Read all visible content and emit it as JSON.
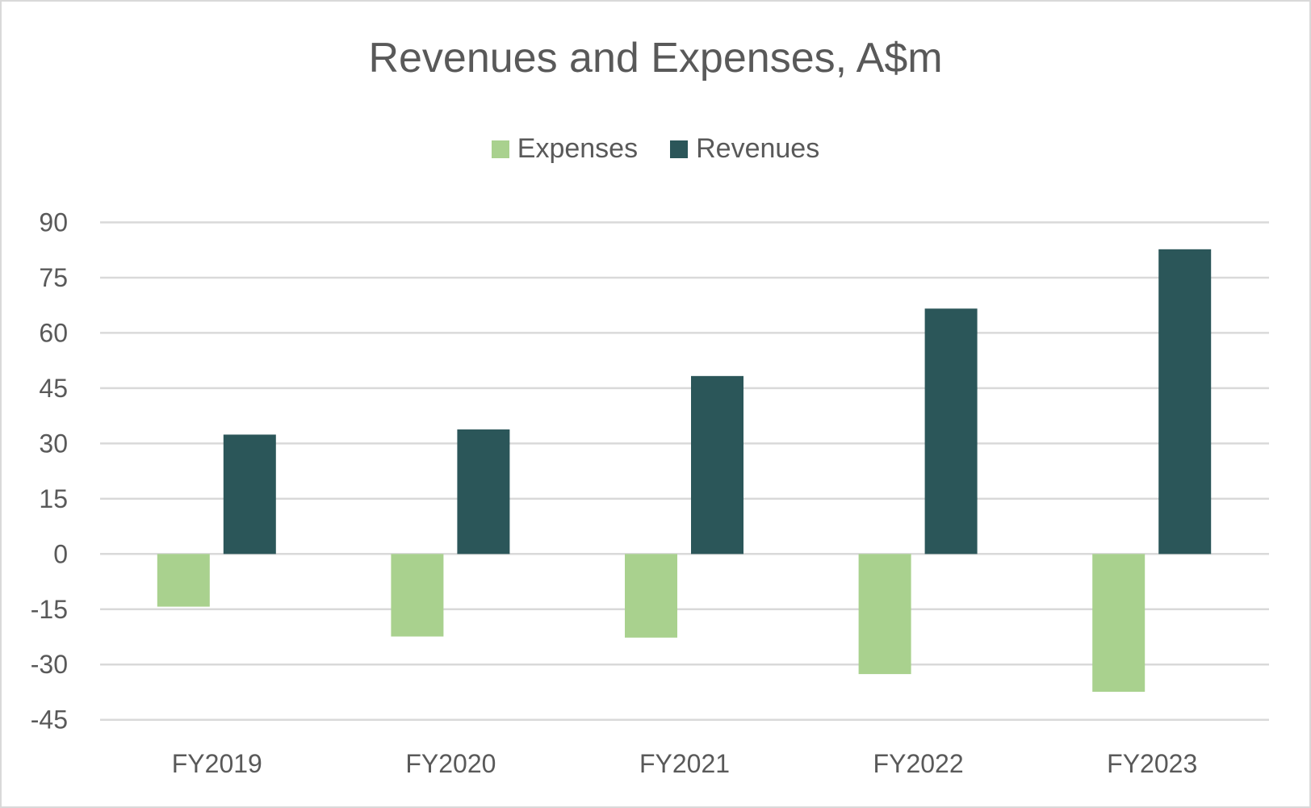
{
  "chart_data": {
    "type": "bar",
    "title": "Revenues and Expenses, A$m",
    "categories": [
      "FY2019",
      "FY2020",
      "FY2021",
      "FY2022",
      "FY2023"
    ],
    "series": [
      {
        "name": "Expenses",
        "color": "#a9d18e",
        "values": [
          -14.3,
          -22.4,
          -22.7,
          -32.6,
          -37.4
        ]
      },
      {
        "name": "Revenues",
        "color": "#2b5659",
        "values": [
          32.4,
          33.8,
          48.3,
          66.6,
          82.7
        ]
      }
    ],
    "ylim": [
      -45,
      90
    ],
    "yticks": [
      "90",
      "75",
      "60",
      "45",
      "30",
      "15",
      "0",
      "-15",
      "-30",
      "-45"
    ],
    "grid": true,
    "legend_position": "top"
  }
}
